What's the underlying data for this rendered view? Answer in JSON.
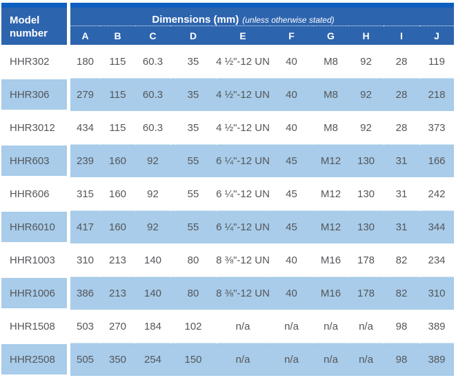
{
  "colors": {
    "header_blue": "#2d64ae",
    "header_top_strip": "#0c5ec0",
    "row_alt_blue": "#a8cce9",
    "body_text": "#54565a",
    "header_text": "#ffffff",
    "background": "#ffffff"
  },
  "chart_data": {
    "type": "table",
    "title": "Dimensions (mm)",
    "subtitle": "(unless otherwise stated)",
    "row_header": "Model number",
    "columns": [
      "A",
      "B",
      "C",
      "D",
      "E",
      "F",
      "G",
      "H",
      "I",
      "J"
    ],
    "rows": [
      {
        "model": "HHR302",
        "values": [
          "180",
          "115",
          "60.3",
          "35",
          "4 ½\"-12 UN",
          "40",
          "M8",
          "92",
          "28",
          "119"
        ]
      },
      {
        "model": "HHR306",
        "values": [
          "279",
          "115",
          "60.3",
          "35",
          "4 ½\"-12 UN",
          "40",
          "M8",
          "92",
          "28",
          "218"
        ]
      },
      {
        "model": "HHR3012",
        "values": [
          "434",
          "115",
          "60.3",
          "35",
          "4 ½\"-12 UN",
          "40",
          "M8",
          "92",
          "28",
          "373"
        ]
      },
      {
        "model": "HHR603",
        "values": [
          "239",
          "160",
          "92",
          "55",
          "6 ¼\"-12 UN",
          "45",
          "M12",
          "130",
          "31",
          "166"
        ]
      },
      {
        "model": "HHR606",
        "values": [
          "315",
          "160",
          "92",
          "55",
          "6 ¼\"-12 UN",
          "45",
          "M12",
          "130",
          "31",
          "242"
        ]
      },
      {
        "model": "HHR6010",
        "values": [
          "417",
          "160",
          "92",
          "55",
          "6 ¼\"-12 UN",
          "45",
          "M12",
          "130",
          "31",
          "344"
        ]
      },
      {
        "model": "HHR1003",
        "values": [
          "310",
          "213",
          "140",
          "80",
          "8 ⅜\"-12 UN",
          "40",
          "M16",
          "178",
          "82",
          "234"
        ]
      },
      {
        "model": "HHR1006",
        "values": [
          "386",
          "213",
          "140",
          "80",
          "8 ⅜\"-12 UN",
          "40",
          "M16",
          "178",
          "82",
          "310"
        ]
      },
      {
        "model": "HHR1508",
        "values": [
          "503",
          "270",
          "184",
          "102",
          "n/a",
          "n/a",
          "n/a",
          "n/a",
          "98",
          "389"
        ]
      },
      {
        "model": "HHR2508",
        "values": [
          "505",
          "350",
          "254",
          "150",
          "n/a",
          "n/a",
          "n/a",
          "n/a",
          "98",
          "389"
        ]
      }
    ]
  }
}
